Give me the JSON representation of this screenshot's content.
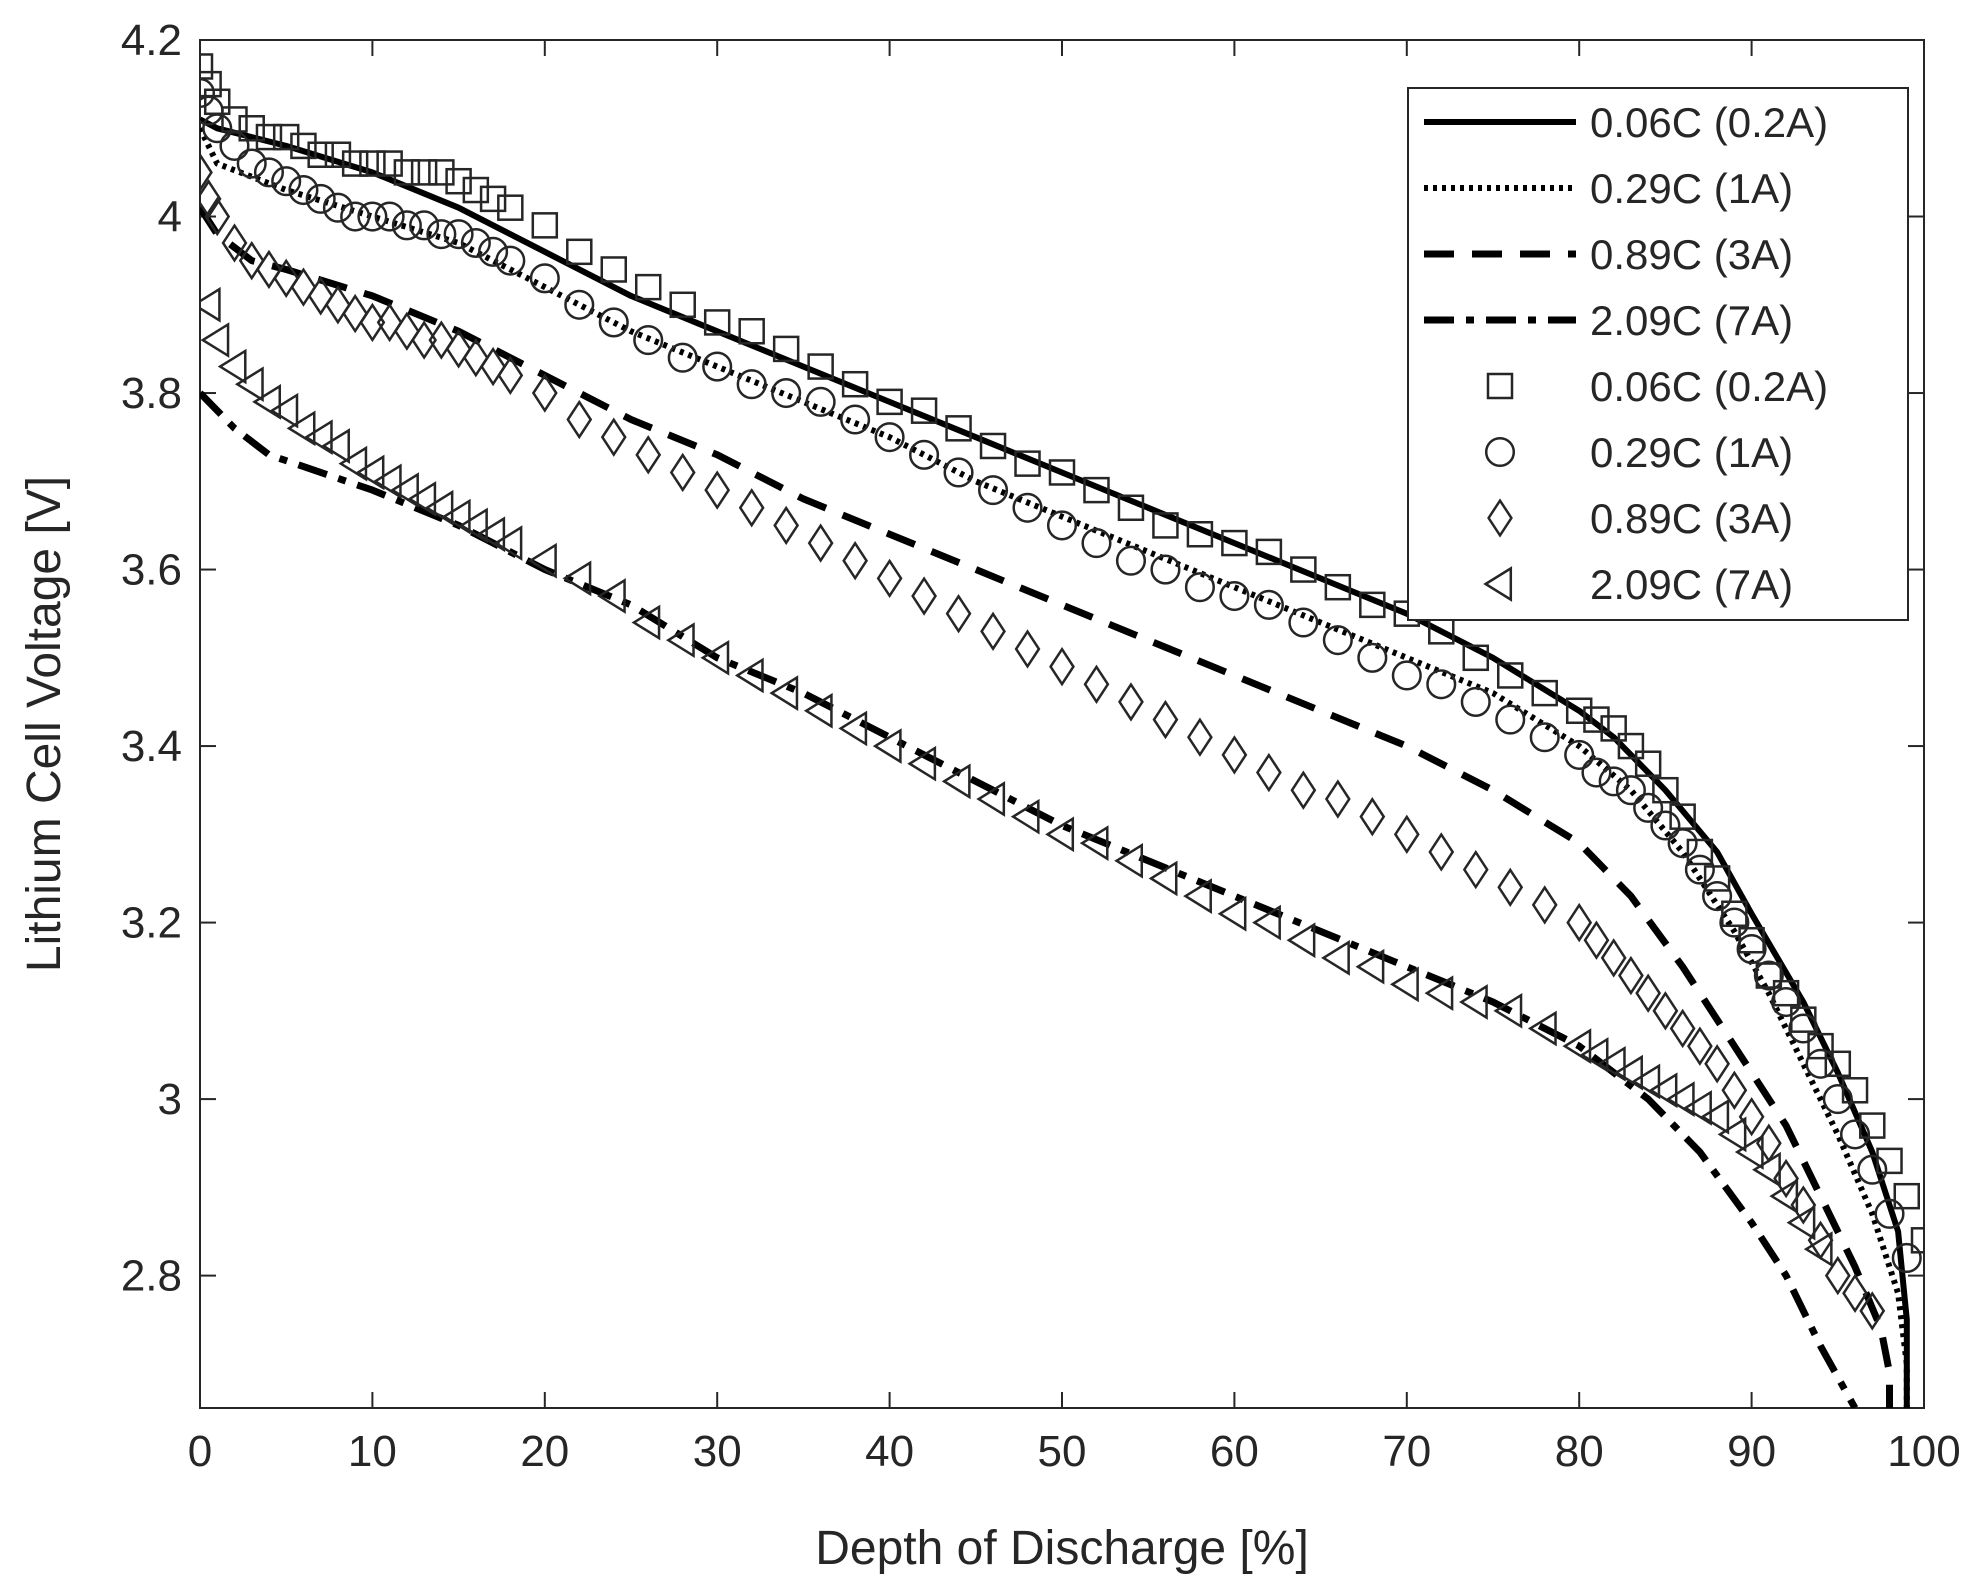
{
  "chart_data": {
    "type": "line",
    "xlabel": "Depth of Discharge [%]",
    "ylabel": "Lithium Cell Voltage [V]",
    "xlim": [
      0,
      100
    ],
    "ylim": [
      2.65,
      4.2
    ],
    "xticks": [
      0,
      10,
      20,
      30,
      40,
      50,
      60,
      70,
      80,
      90,
      100
    ],
    "xtick_labels": [
      "0",
      "10",
      "20",
      "30",
      "40",
      "50",
      "60",
      "70",
      "80",
      "90",
      "100"
    ],
    "yticks": [
      2.8,
      3.0,
      3.2,
      3.4,
      3.6,
      3.8,
      4.0,
      4.2
    ],
    "ytick_labels": [
      "2.8",
      "3",
      "3.2",
      "3.4",
      "3.6",
      "3.8",
      "4",
      "4.2"
    ],
    "grid": false,
    "legend_position": "top-right",
    "series": [
      {
        "name": "0.06C (0.2A)",
        "kind": "line",
        "dash": "solid",
        "x": [
          0,
          1,
          5,
          10,
          15,
          20,
          25,
          30,
          35,
          40,
          45,
          50,
          55,
          60,
          65,
          70,
          75,
          80,
          82,
          85,
          88,
          90,
          93,
          95,
          97,
          98.5,
          99,
          99
        ],
        "y": [
          4.11,
          4.1,
          4.08,
          4.05,
          4.01,
          3.96,
          3.91,
          3.87,
          3.83,
          3.79,
          3.75,
          3.71,
          3.67,
          3.63,
          3.59,
          3.55,
          3.5,
          3.44,
          3.41,
          3.35,
          3.28,
          3.21,
          3.11,
          3.03,
          2.94,
          2.85,
          2.75,
          2.65
        ]
      },
      {
        "name": "0.29C (1A)",
        "kind": "line",
        "dash": "dotted",
        "x": [
          0,
          1,
          5,
          10,
          15,
          20,
          25,
          30,
          35,
          40,
          45,
          50,
          55,
          60,
          65,
          70,
          75,
          80,
          83,
          86,
          89,
          91,
          93,
          95,
          97,
          98.5,
          99,
          99
        ],
        "y": [
          4.1,
          4.06,
          4.03,
          4.0,
          3.97,
          3.92,
          3.87,
          3.83,
          3.79,
          3.75,
          3.7,
          3.66,
          3.62,
          3.58,
          3.54,
          3.5,
          3.46,
          3.4,
          3.35,
          3.28,
          3.19,
          3.12,
          3.04,
          2.96,
          2.87,
          2.78,
          2.7,
          2.65
        ]
      },
      {
        "name": "0.89C (3A)",
        "kind": "line",
        "dash": "dashed",
        "x": [
          0,
          1,
          3,
          5,
          10,
          15,
          20,
          25,
          30,
          35,
          40,
          45,
          50,
          55,
          60,
          65,
          70,
          75,
          80,
          83,
          86,
          89,
          92,
          94,
          96,
          97.5,
          98,
          98
        ],
        "y": [
          4.01,
          3.98,
          3.95,
          3.94,
          3.91,
          3.87,
          3.82,
          3.77,
          3.73,
          3.68,
          3.64,
          3.6,
          3.56,
          3.52,
          3.48,
          3.44,
          3.4,
          3.35,
          3.29,
          3.23,
          3.15,
          3.06,
          2.97,
          2.89,
          2.81,
          2.74,
          2.69,
          2.65
        ]
      },
      {
        "name": "2.09C (7A)",
        "kind": "line",
        "dash": "dashdot",
        "x": [
          0,
          2,
          4,
          10,
          15,
          20,
          25,
          30,
          35,
          40,
          45,
          50,
          55,
          60,
          65,
          70,
          75,
          80,
          84,
          87,
          90,
          92,
          94,
          96
        ],
        "y": [
          3.8,
          3.76,
          3.73,
          3.69,
          3.65,
          3.6,
          3.56,
          3.5,
          3.46,
          3.41,
          3.36,
          3.31,
          3.27,
          3.23,
          3.19,
          3.15,
          3.11,
          3.06,
          3.0,
          2.94,
          2.86,
          2.8,
          2.72,
          2.65
        ]
      },
      {
        "name": "0.06C (0.2A)",
        "kind": "marker",
        "marker": "square",
        "x": [
          0,
          0.5,
          1,
          2,
          3,
          4,
          5,
          6,
          7,
          8,
          9,
          10,
          11,
          12,
          13,
          14,
          15,
          16,
          17,
          18,
          20,
          22,
          24,
          26,
          28,
          30,
          32,
          34,
          36,
          38,
          40,
          42,
          44,
          46,
          48,
          50,
          52,
          54,
          56,
          58,
          60,
          62,
          64,
          66,
          68,
          70,
          72,
          74,
          76,
          78,
          80,
          81,
          82,
          83,
          84,
          85,
          86,
          87,
          88,
          89,
          90,
          91,
          92,
          93,
          94,
          95,
          96,
          97,
          98,
          99,
          100
        ],
        "y": [
          4.17,
          4.15,
          4.13,
          4.11,
          4.1,
          4.09,
          4.09,
          4.08,
          4.07,
          4.07,
          4.06,
          4.06,
          4.06,
          4.05,
          4.05,
          4.05,
          4.04,
          4.03,
          4.02,
          4.01,
          3.99,
          3.96,
          3.94,
          3.92,
          3.9,
          3.88,
          3.87,
          3.85,
          3.83,
          3.81,
          3.79,
          3.78,
          3.76,
          3.74,
          3.72,
          3.71,
          3.69,
          3.67,
          3.65,
          3.64,
          3.63,
          3.62,
          3.6,
          3.58,
          3.56,
          3.55,
          3.53,
          3.5,
          3.48,
          3.46,
          3.44,
          3.43,
          3.42,
          3.4,
          3.38,
          3.35,
          3.32,
          3.28,
          3.25,
          3.21,
          3.18,
          3.14,
          3.12,
          3.09,
          3.06,
          3.04,
          3.01,
          2.97,
          2.93,
          2.89,
          2.84
        ]
      },
      {
        "name": "0.29C (1A)",
        "kind": "marker",
        "marker": "circle",
        "x": [
          0,
          0.5,
          1,
          2,
          3,
          4,
          5,
          6,
          7,
          8,
          9,
          10,
          11,
          12,
          13,
          14,
          15,
          16,
          17,
          18,
          20,
          22,
          24,
          26,
          28,
          30,
          32,
          34,
          36,
          38,
          40,
          42,
          44,
          46,
          48,
          50,
          52,
          54,
          56,
          58,
          60,
          62,
          64,
          66,
          68,
          70,
          72,
          74,
          76,
          78,
          80,
          81,
          82,
          83,
          84,
          85,
          86,
          87,
          88,
          89,
          90,
          91,
          92,
          93,
          94,
          95,
          96,
          97,
          98,
          99
        ],
        "y": [
          4.14,
          4.12,
          4.1,
          4.08,
          4.06,
          4.05,
          4.04,
          4.03,
          4.02,
          4.01,
          4.0,
          4.0,
          4.0,
          3.99,
          3.99,
          3.98,
          3.98,
          3.97,
          3.96,
          3.95,
          3.93,
          3.9,
          3.88,
          3.86,
          3.84,
          3.83,
          3.81,
          3.8,
          3.79,
          3.77,
          3.75,
          3.73,
          3.71,
          3.69,
          3.67,
          3.65,
          3.63,
          3.61,
          3.6,
          3.58,
          3.57,
          3.56,
          3.54,
          3.52,
          3.5,
          3.48,
          3.47,
          3.45,
          3.43,
          3.41,
          3.39,
          3.37,
          3.36,
          3.35,
          3.33,
          3.31,
          3.29,
          3.26,
          3.23,
          3.2,
          3.17,
          3.14,
          3.11,
          3.08,
          3.04,
          3.0,
          2.96,
          2.92,
          2.87,
          2.82
        ]
      },
      {
        "name": "0.89C (3A)",
        "kind": "marker",
        "marker": "diamond",
        "x": [
          0,
          0.5,
          1,
          2,
          3,
          4,
          5,
          6,
          7,
          8,
          9,
          10,
          11,
          12,
          13,
          14,
          15,
          16,
          17,
          18,
          20,
          22,
          24,
          26,
          28,
          30,
          32,
          34,
          36,
          38,
          40,
          42,
          44,
          46,
          48,
          50,
          52,
          54,
          56,
          58,
          60,
          62,
          64,
          66,
          68,
          70,
          72,
          74,
          76,
          78,
          80,
          81,
          82,
          83,
          84,
          85,
          86,
          87,
          88,
          89,
          90,
          91,
          92,
          93,
          94,
          95,
          96,
          97
        ],
        "y": [
          4.05,
          4.02,
          4.0,
          3.97,
          3.95,
          3.94,
          3.93,
          3.92,
          3.91,
          3.9,
          3.89,
          3.88,
          3.88,
          3.87,
          3.86,
          3.86,
          3.85,
          3.84,
          3.83,
          3.82,
          3.8,
          3.77,
          3.75,
          3.73,
          3.71,
          3.69,
          3.67,
          3.65,
          3.63,
          3.61,
          3.59,
          3.57,
          3.55,
          3.53,
          3.51,
          3.49,
          3.47,
          3.45,
          3.43,
          3.41,
          3.39,
          3.37,
          3.35,
          3.34,
          3.32,
          3.3,
          3.28,
          3.26,
          3.24,
          3.22,
          3.2,
          3.18,
          3.16,
          3.14,
          3.12,
          3.1,
          3.08,
          3.06,
          3.04,
          3.01,
          2.98,
          2.95,
          2.91,
          2.88,
          2.84,
          2.8,
          2.78,
          2.76
        ]
      },
      {
        "name": "2.09C (7A)",
        "kind": "marker",
        "marker": "triangle-left",
        "x": [
          0.5,
          1,
          2,
          3,
          4,
          5,
          6,
          7,
          8,
          9,
          10,
          11,
          12,
          13,
          14,
          15,
          16,
          17,
          18,
          20,
          22,
          24,
          26,
          28,
          30,
          32,
          34,
          36,
          38,
          40,
          42,
          44,
          46,
          48,
          50,
          52,
          54,
          56,
          58,
          60,
          62,
          64,
          66,
          68,
          70,
          72,
          74,
          76,
          78,
          80,
          81,
          82,
          83,
          84,
          85,
          86,
          87,
          88,
          89,
          90,
          91,
          92,
          93,
          94
        ],
        "y": [
          3.9,
          3.86,
          3.83,
          3.81,
          3.79,
          3.78,
          3.76,
          3.75,
          3.74,
          3.72,
          3.71,
          3.7,
          3.69,
          3.68,
          3.67,
          3.66,
          3.65,
          3.64,
          3.63,
          3.61,
          3.59,
          3.57,
          3.54,
          3.52,
          3.5,
          3.48,
          3.46,
          3.44,
          3.42,
          3.4,
          3.38,
          3.36,
          3.34,
          3.32,
          3.3,
          3.29,
          3.27,
          3.25,
          3.23,
          3.21,
          3.2,
          3.18,
          3.16,
          3.15,
          3.13,
          3.12,
          3.11,
          3.1,
          3.08,
          3.06,
          3.05,
          3.04,
          3.03,
          3.02,
          3.01,
          3.0,
          2.99,
          2.98,
          2.96,
          2.94,
          2.92,
          2.89,
          2.86,
          2.83
        ]
      }
    ]
  }
}
